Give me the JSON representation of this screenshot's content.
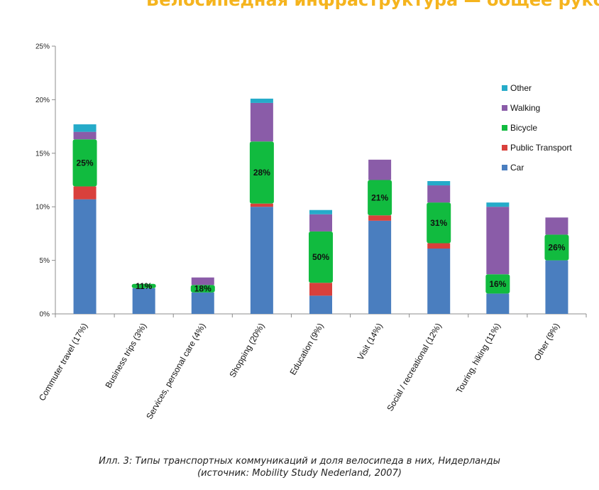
{
  "page": {
    "title": "Велосипедная инфраструктура — общее руко",
    "caption_line1": "Илл. 3: Типы транспортных коммуникаций и доля велосипеда в них, Нидерланды",
    "caption_line2": "(источник: Mobility Study Nederland, 2007)"
  },
  "chart_data": {
    "type": "bar",
    "stacked": true,
    "categories": [
      "Commuter travel (17%)",
      "Business trips (3%)",
      "Services, personal care (4%)",
      "Shopping (20%)",
      "Education (9%)",
      "Visit (14%)",
      "Social / recreational (12%)",
      "Touring, hiking (11%)",
      "Other (9%)"
    ],
    "series": [
      {
        "name": "Car",
        "color": "#4a7ebf",
        "values": [
          10.7,
          2.4,
          2.0,
          10.0,
          1.7,
          8.7,
          6.1,
          1.9,
          5.0
        ]
      },
      {
        "name": "Public Transport",
        "color": "#d9403c",
        "values": [
          1.2,
          0.0,
          0.0,
          0.3,
          1.2,
          0.5,
          0.5,
          0.0,
          0.0
        ]
      },
      {
        "name": "Bicycle",
        "color": "#11bb3f",
        "values": [
          4.4,
          0.4,
          0.7,
          5.8,
          4.8,
          3.3,
          3.8,
          1.8,
          2.4
        ]
      },
      {
        "name": "Walking",
        "color": "#8a5ca8",
        "values": [
          0.7,
          0.0,
          0.7,
          3.6,
          1.6,
          1.9,
          1.6,
          6.3,
          1.6
        ]
      },
      {
        "name": "Other",
        "color": "#25abc9",
        "values": [
          0.7,
          0.0,
          0.0,
          0.4,
          0.4,
          0.0,
          0.4,
          0.4,
          0.0
        ]
      }
    ],
    "bicycle_share_labels": [
      "25%",
      "11%",
      "18%",
      "28%",
      "50%",
      "21%",
      "31%",
      "16%",
      "26%"
    ],
    "y_ticks": [
      "0%",
      "5%",
      "10%",
      "15%",
      "20%",
      "25%"
    ],
    "ylim": [
      0,
      25
    ],
    "legend_order": [
      "Other",
      "Walking",
      "Bicycle",
      "Public Transport",
      "Car"
    ],
    "legend_position": "right",
    "grid": false
  }
}
